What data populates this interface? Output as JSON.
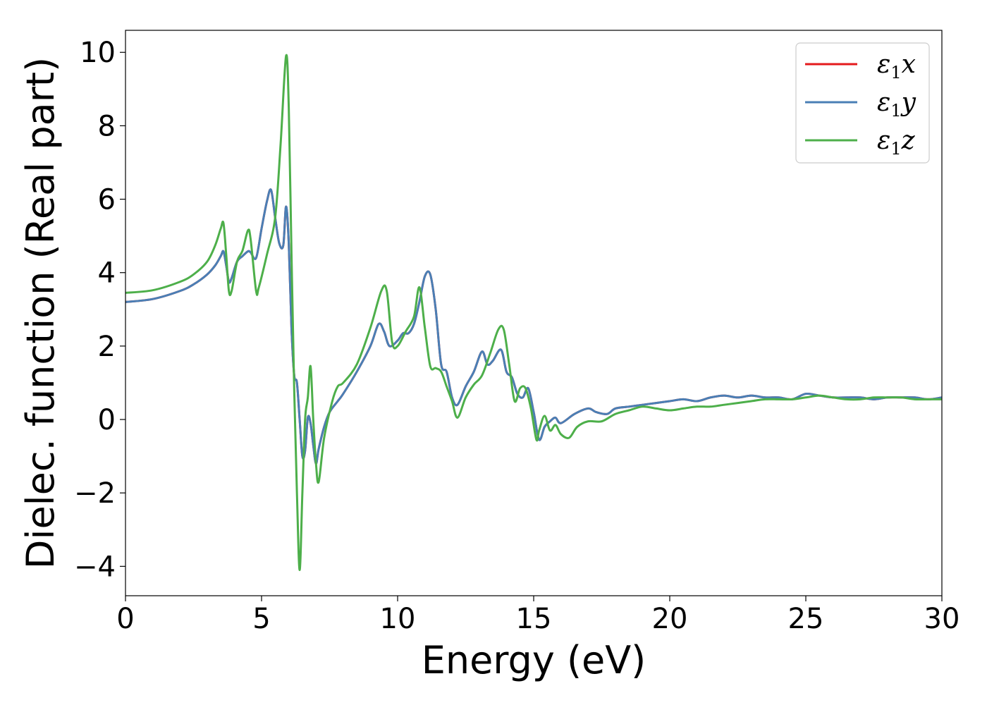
{
  "chart_data": {
    "type": "line",
    "xlabel": "Energy (eV)",
    "ylabel": "Dielec. function (Real part)",
    "xlim": [
      0,
      30
    ],
    "ylim": [
      -4.8,
      10.6
    ],
    "xticks": [
      0,
      5,
      10,
      15,
      20,
      25,
      30
    ],
    "yticks": [
      -4,
      -2,
      0,
      2,
      4,
      6,
      8,
      10
    ],
    "xtick_labels": [
      "0",
      "5",
      "10",
      "15",
      "20",
      "25",
      "30"
    ],
    "ytick_labels": [
      "−4",
      "−2",
      "0",
      "2",
      "4",
      "6",
      "8",
      "10"
    ],
    "grid": false,
    "legend_position": "top-right",
    "series": [
      {
        "name": "ε1x",
        "label_base": "ε",
        "label_sub": "1",
        "label_var": "x",
        "color": "#e41a1c",
        "x": [
          0,
          1,
          2,
          2.5,
          3,
          3.3,
          3.5,
          3.6,
          3.7,
          3.8,
          3.9,
          4.1,
          4.3,
          4.5,
          4.6,
          4.8,
          5.0,
          5.2,
          5.35,
          5.5,
          5.65,
          5.8,
          5.9,
          6.0,
          6.1,
          6.2,
          6.3,
          6.4,
          6.5,
          6.6,
          6.7,
          6.8,
          6.9,
          7.0,
          7.1,
          7.3,
          7.5,
          7.8,
          8.0,
          8.5,
          9.0,
          9.3,
          9.5,
          9.7,
          10.0,
          10.2,
          10.4,
          10.6,
          10.8,
          11.0,
          11.2,
          11.4,
          11.6,
          11.8,
          12.0,
          12.2,
          12.5,
          12.8,
          13.1,
          13.3,
          13.5,
          13.8,
          14.0,
          14.2,
          14.4,
          14.6,
          14.8,
          15.0,
          15.2,
          15.4,
          15.6,
          15.8,
          16.0,
          16.5,
          17.0,
          17.3,
          17.7,
          18.0,
          18.5,
          19,
          19.5,
          20,
          20.5,
          21,
          21.5,
          22,
          22.5,
          23,
          23.5,
          24,
          24.5,
          25,
          25.5,
          26,
          26.5,
          27,
          27.5,
          28,
          28.5,
          29,
          29.5,
          30
        ],
        "y": [
          3.2,
          3.28,
          3.5,
          3.68,
          3.95,
          4.2,
          4.45,
          4.58,
          4.2,
          3.75,
          3.85,
          4.3,
          4.45,
          4.58,
          4.55,
          4.4,
          5.2,
          5.95,
          6.25,
          5.5,
          4.8,
          4.75,
          5.8,
          4.8,
          2.5,
          1.2,
          1.0,
          0.0,
          -1.0,
          -0.85,
          0.05,
          -0.1,
          -0.7,
          -1.2,
          -0.8,
          -0.2,
          0.2,
          0.5,
          0.7,
          1.3,
          2.0,
          2.6,
          2.4,
          2.0,
          2.15,
          2.35,
          2.35,
          2.6,
          3.2,
          3.9,
          3.95,
          3.0,
          1.5,
          1.3,
          0.6,
          0.4,
          0.9,
          1.3,
          1.85,
          1.5,
          1.6,
          1.9,
          1.3,
          1.15,
          0.7,
          0.6,
          0.85,
          0.2,
          -0.55,
          -0.2,
          -0.05,
          0.05,
          -0.1,
          0.15,
          0.3,
          0.2,
          0.15,
          0.3,
          0.35,
          0.4,
          0.45,
          0.5,
          0.55,
          0.5,
          0.6,
          0.65,
          0.6,
          0.65,
          0.6,
          0.6,
          0.55,
          0.7,
          0.65,
          0.6,
          0.6,
          0.6,
          0.55,
          0.6,
          0.6,
          0.6,
          0.55,
          0.6
        ]
      },
      {
        "name": "ε1y",
        "label_base": "ε",
        "label_sub": "1",
        "label_var": "y",
        "color": "#4a7fb5",
        "x": [
          0,
          1,
          2,
          2.5,
          3,
          3.3,
          3.5,
          3.6,
          3.7,
          3.8,
          3.9,
          4.1,
          4.3,
          4.5,
          4.6,
          4.8,
          5.0,
          5.2,
          5.35,
          5.5,
          5.65,
          5.8,
          5.9,
          6.0,
          6.1,
          6.2,
          6.3,
          6.4,
          6.5,
          6.6,
          6.7,
          6.8,
          6.9,
          7.0,
          7.1,
          7.3,
          7.5,
          7.8,
          8.0,
          8.5,
          9.0,
          9.3,
          9.5,
          9.7,
          10.0,
          10.2,
          10.4,
          10.6,
          10.8,
          11.0,
          11.2,
          11.4,
          11.6,
          11.8,
          12.0,
          12.2,
          12.5,
          12.8,
          13.1,
          13.3,
          13.5,
          13.8,
          14.0,
          14.2,
          14.4,
          14.6,
          14.8,
          15.0,
          15.2,
          15.4,
          15.6,
          15.8,
          16.0,
          16.5,
          17.0,
          17.3,
          17.7,
          18.0,
          18.5,
          19,
          19.5,
          20,
          20.5,
          21,
          21.5,
          22,
          22.5,
          23,
          23.5,
          24,
          24.5,
          25,
          25.5,
          26,
          26.5,
          27,
          27.5,
          28,
          28.5,
          29,
          29.5,
          30
        ],
        "y": [
          3.2,
          3.28,
          3.5,
          3.68,
          3.95,
          4.2,
          4.45,
          4.58,
          4.2,
          3.75,
          3.85,
          4.3,
          4.45,
          4.58,
          4.55,
          4.4,
          5.2,
          5.95,
          6.25,
          5.5,
          4.8,
          4.75,
          5.8,
          4.8,
          2.5,
          1.2,
          1.0,
          0.0,
          -1.0,
          -0.85,
          0.05,
          -0.1,
          -0.7,
          -1.2,
          -0.8,
          -0.2,
          0.2,
          0.5,
          0.7,
          1.3,
          2.0,
          2.6,
          2.4,
          2.0,
          2.15,
          2.35,
          2.35,
          2.6,
          3.2,
          3.9,
          3.95,
          3.0,
          1.5,
          1.3,
          0.6,
          0.4,
          0.9,
          1.3,
          1.85,
          1.5,
          1.6,
          1.9,
          1.3,
          1.15,
          0.7,
          0.6,
          0.85,
          0.2,
          -0.55,
          -0.2,
          -0.05,
          0.05,
          -0.1,
          0.15,
          0.3,
          0.2,
          0.15,
          0.3,
          0.35,
          0.4,
          0.45,
          0.5,
          0.55,
          0.5,
          0.6,
          0.65,
          0.6,
          0.65,
          0.6,
          0.6,
          0.55,
          0.7,
          0.65,
          0.6,
          0.6,
          0.6,
          0.55,
          0.6,
          0.6,
          0.6,
          0.55,
          0.6
        ]
      },
      {
        "name": "ε1z",
        "label_base": "ε",
        "label_sub": "1",
        "label_var": "z",
        "color": "#4daf4a",
        "x": [
          0,
          1,
          2,
          2.5,
          3,
          3.3,
          3.5,
          3.6,
          3.7,
          3.8,
          3.9,
          4.1,
          4.3,
          4.5,
          4.6,
          4.8,
          4.9,
          5.2,
          5.5,
          5.7,
          5.9,
          6.0,
          6.1,
          6.2,
          6.3,
          6.4,
          6.5,
          6.6,
          6.7,
          6.8,
          6.9,
          7.0,
          7.1,
          7.3,
          7.6,
          7.8,
          8.0,
          8.5,
          9.0,
          9.4,
          9.6,
          9.8,
          10.0,
          10.3,
          10.6,
          10.8,
          11.0,
          11.2,
          11.4,
          11.6,
          11.8,
          12.0,
          12.2,
          12.5,
          12.8,
          13.1,
          13.4,
          13.7,
          13.9,
          14.1,
          14.3,
          14.5,
          14.7,
          14.9,
          15.1,
          15.2,
          15.4,
          15.6,
          15.8,
          16.0,
          16.3,
          16.6,
          17.0,
          17.5,
          18,
          18.5,
          19,
          19.5,
          20,
          20.5,
          21,
          21.5,
          22,
          22.5,
          23,
          23.5,
          24,
          24.5,
          25,
          25.5,
          26,
          26.5,
          27,
          27.5,
          28,
          28.5,
          29,
          29.5,
          30
        ],
        "y": [
          3.45,
          3.52,
          3.75,
          3.95,
          4.3,
          4.75,
          5.2,
          5.35,
          4.5,
          3.5,
          3.5,
          4.3,
          4.6,
          5.15,
          4.9,
          3.5,
          3.6,
          4.5,
          5.5,
          7.5,
          9.9,
          8.5,
          4.5,
          0.8,
          -2.0,
          -4.1,
          -2.0,
          0.0,
          0.6,
          1.45,
          0.0,
          -1.2,
          -1.7,
          -0.5,
          0.5,
          0.9,
          1.0,
          1.5,
          2.5,
          3.5,
          3.5,
          2.1,
          2.0,
          2.4,
          2.8,
          3.6,
          2.5,
          1.45,
          1.4,
          1.3,
          0.9,
          0.5,
          0.05,
          0.6,
          0.95,
          1.2,
          1.8,
          2.45,
          2.45,
          1.5,
          0.5,
          0.85,
          0.85,
          0.3,
          -0.55,
          -0.3,
          0.1,
          -0.3,
          -0.15,
          -0.4,
          -0.5,
          -0.2,
          -0.05,
          -0.05,
          0.15,
          0.25,
          0.35,
          0.3,
          0.25,
          0.3,
          0.35,
          0.35,
          0.4,
          0.45,
          0.5,
          0.55,
          0.55,
          0.55,
          0.6,
          0.65,
          0.6,
          0.55,
          0.55,
          0.6,
          0.6,
          0.6,
          0.55,
          0.55,
          0.55
        ]
      }
    ]
  }
}
